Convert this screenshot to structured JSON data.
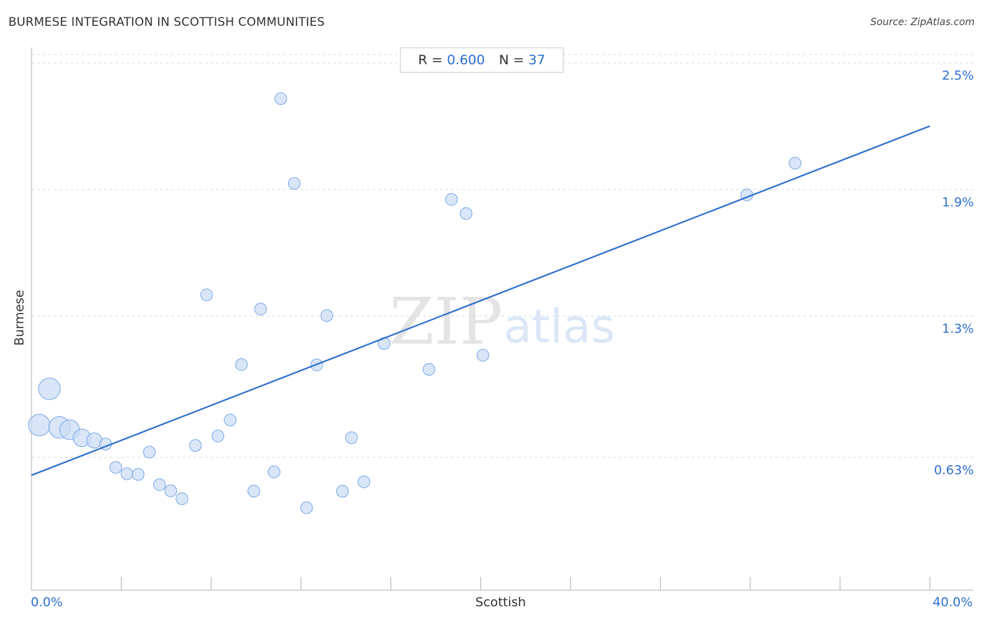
{
  "title": "BURMESE INTEGRATION IN SCOTTISH COMMUNITIES",
  "source": "Source: ZipAtlas.com",
  "stats": {
    "r_label": "R =",
    "r_value": "0.600",
    "n_label": "N =",
    "n_value": "37"
  },
  "watermark": {
    "zip": "ZIP",
    "atlas": "atlas"
  },
  "colors": {
    "accent": "#2f6fd0",
    "bubble_fill": "#c9dcf5",
    "bubble_stroke": "#7aa8e6",
    "grid": "#dddddd"
  },
  "chart_data": {
    "type": "scatter",
    "title": "BURMESE INTEGRATION IN SCOTTISH COMMUNITIES",
    "xlabel": "Scottish",
    "ylabel": "Burmese",
    "xlim": [
      0,
      40
    ],
    "ylim": [
      0,
      2.6
    ],
    "x_tick_labels": [
      "0.0%",
      "40.0%"
    ],
    "y_ticks": [
      {
        "value": 0.63,
        "label": "0.63%"
      },
      {
        "value": 1.3,
        "label": "1.3%"
      },
      {
        "value": 1.9,
        "label": "1.9%"
      },
      {
        "value": 2.5,
        "label": "2.5%"
      }
    ],
    "grid": true,
    "trendline": {
      "x": [
        0,
        40
      ],
      "y": [
        0.545,
        2.201
      ]
    },
    "points": [
      {
        "x": 0.35,
        "y": 0.783,
        "size": 3
      },
      {
        "x": 0.8,
        "y": 0.955,
        "size": 3
      },
      {
        "x": 1.25,
        "y": 0.772,
        "size": 3
      },
      {
        "x": 1.7,
        "y": 0.761,
        "size": 2.5
      },
      {
        "x": 2.25,
        "y": 0.722,
        "size": 2
      },
      {
        "x": 2.8,
        "y": 0.71,
        "size": 1.5
      },
      {
        "x": 3.3,
        "y": 0.693,
        "size": 1
      },
      {
        "x": 3.75,
        "y": 0.582,
        "size": 1
      },
      {
        "x": 4.25,
        "y": 0.552,
        "size": 1
      },
      {
        "x": 4.75,
        "y": 0.549,
        "size": 1
      },
      {
        "x": 5.25,
        "y": 0.655,
        "size": 1
      },
      {
        "x": 5.7,
        "y": 0.5,
        "size": 1
      },
      {
        "x": 6.2,
        "y": 0.471,
        "size": 1
      },
      {
        "x": 6.7,
        "y": 0.434,
        "size": 1
      },
      {
        "x": 7.3,
        "y": 0.686,
        "size": 1
      },
      {
        "x": 7.8,
        "y": 1.4,
        "size": 1
      },
      {
        "x": 8.3,
        "y": 0.731,
        "size": 1
      },
      {
        "x": 8.85,
        "y": 0.807,
        "size": 1
      },
      {
        "x": 9.35,
        "y": 1.07,
        "size": 1
      },
      {
        "x": 9.9,
        "y": 0.47,
        "size": 1
      },
      {
        "x": 10.2,
        "y": 1.333,
        "size": 1
      },
      {
        "x": 10.8,
        "y": 0.561,
        "size": 1
      },
      {
        "x": 11.1,
        "y": 2.331,
        "size": 1
      },
      {
        "x": 11.7,
        "y": 1.929,
        "size": 1
      },
      {
        "x": 12.25,
        "y": 0.391,
        "size": 1
      },
      {
        "x": 12.7,
        "y": 1.068,
        "size": 1
      },
      {
        "x": 13.15,
        "y": 1.302,
        "size": 1
      },
      {
        "x": 13.85,
        "y": 0.469,
        "size": 1
      },
      {
        "x": 14.25,
        "y": 0.723,
        "size": 1
      },
      {
        "x": 14.8,
        "y": 0.514,
        "size": 1
      },
      {
        "x": 15.7,
        "y": 1.17,
        "size": 1
      },
      {
        "x": 17.7,
        "y": 1.047,
        "size": 1
      },
      {
        "x": 18.7,
        "y": 1.853,
        "size": 1
      },
      {
        "x": 19.35,
        "y": 1.786,
        "size": 1
      },
      {
        "x": 20.1,
        "y": 1.114,
        "size": 1
      },
      {
        "x": 31.85,
        "y": 1.874,
        "size": 1
      },
      {
        "x": 34.0,
        "y": 2.025,
        "size": 1
      }
    ]
  }
}
